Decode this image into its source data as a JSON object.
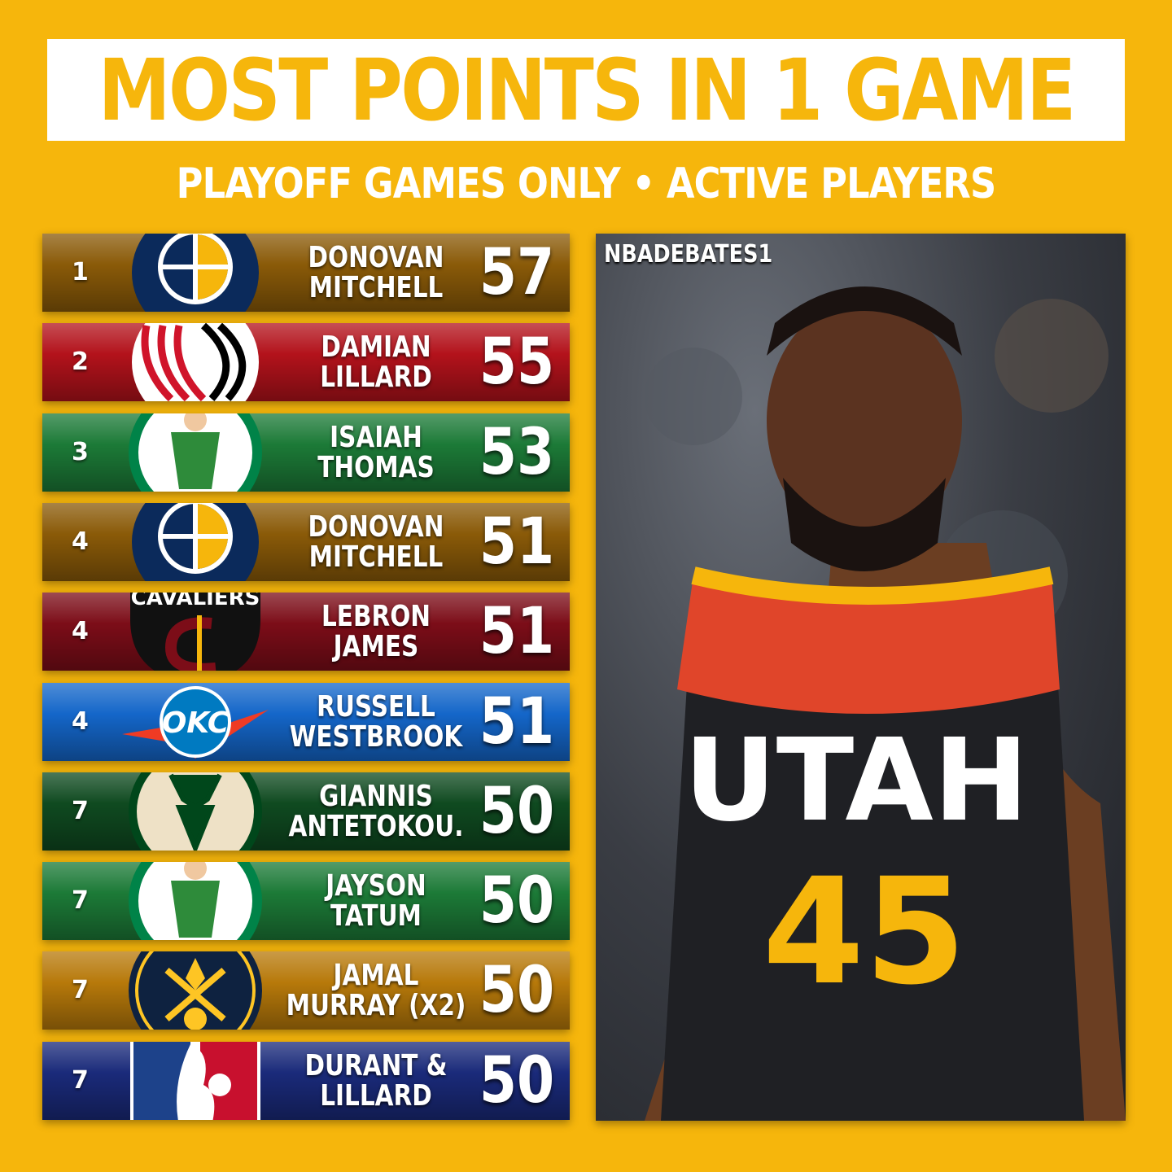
{
  "header": {
    "title": "MOST POINTS IN 1 GAME",
    "subtitle": "PLAYOFF GAMES ONLY • ACTIVE PLAYERS"
  },
  "colors": {
    "background": "#F6B60C",
    "title_box": "#FFFFFF"
  },
  "rows": [
    {
      "rank": "1",
      "line1": "DONOVAN",
      "line2": "MITCHELL",
      "points": "57",
      "team": "jazz-logo",
      "color": "#8a5a08"
    },
    {
      "rank": "2",
      "line1": "DAMIAN",
      "line2": "LILLARD",
      "points": "55",
      "team": "blazers-logo",
      "color": "#b3121b"
    },
    {
      "rank": "3",
      "line1": "ISAIAH",
      "line2": "THOMAS",
      "points": "53",
      "team": "celtics-logo",
      "color": "#1c7a37"
    },
    {
      "rank": "4",
      "line1": "DONOVAN",
      "line2": "MITCHELL",
      "points": "51",
      "team": "jazz-logo",
      "color": "#8a5a08"
    },
    {
      "rank": "4",
      "line1": "LEBRON",
      "line2": "JAMES",
      "points": "51",
      "team": "cavaliers-logo",
      "color": "#7c0d18"
    },
    {
      "rank": "4",
      "line1": "RUSSELL",
      "line2": "WESTBROOK",
      "points": "51",
      "team": "thunder-logo",
      "color": "#1466c9"
    },
    {
      "rank": "7",
      "line1": "GIANNIS",
      "line2": "ANTETOKOU.",
      "points": "50",
      "team": "bucks-logo",
      "color": "#0f4a20"
    },
    {
      "rank": "7",
      "line1": "JAYSON",
      "line2": "TATUM",
      "points": "50",
      "team": "celtics-logo",
      "color": "#1c7a37"
    },
    {
      "rank": "7",
      "line1": "JAMAL",
      "line2": "MURRAY (X2)",
      "points": "50",
      "team": "nuggets-logo",
      "color": "#b7790a"
    },
    {
      "rank": "7",
      "line1": "DURANT &",
      "line2": "LILLARD",
      "points": "50",
      "team": "nba-logo",
      "color": "#1a2a7a"
    }
  ],
  "photo": {
    "watermark": "NBADEBATES1",
    "jersey_text": "UTAH",
    "jersey_number": "45"
  }
}
